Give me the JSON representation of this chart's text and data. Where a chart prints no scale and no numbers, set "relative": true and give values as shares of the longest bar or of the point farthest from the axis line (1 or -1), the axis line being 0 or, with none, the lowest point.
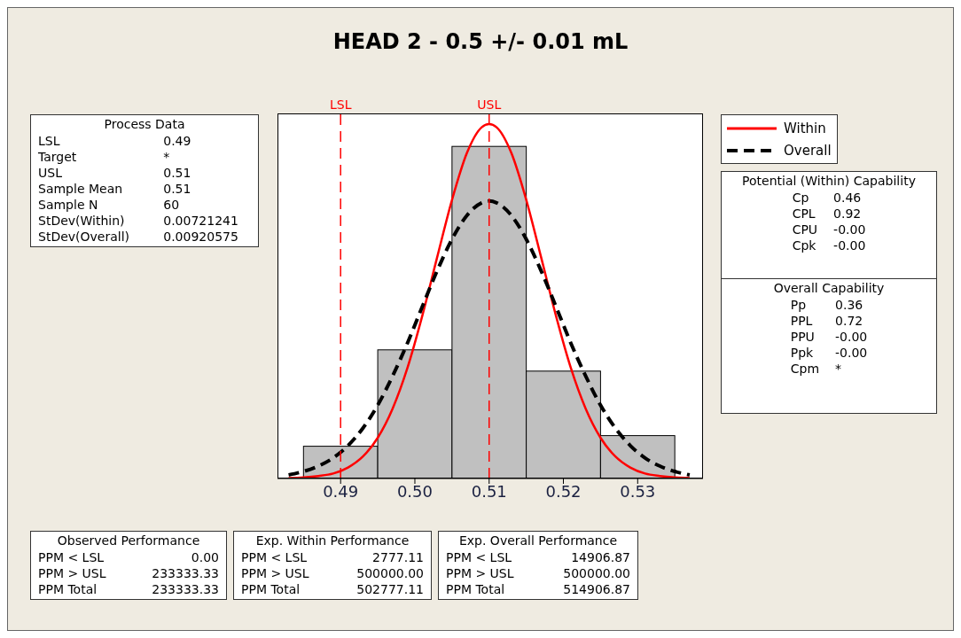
{
  "chart_data": {
    "type": "histogram",
    "title": "HEAD 2 - 0.5 +/- 0.01 mL",
    "relative": true,
    "bins": [
      0.485,
      0.495,
      0.505,
      0.515,
      0.525,
      0.535
    ],
    "values": [
      0.091,
      0.363,
      0.937,
      0.303,
      0.121
    ],
    "color": "#c0c0c0",
    "xlim": [
      0.4815,
      0.5388
    ],
    "xticks": [
      0.49,
      {
        "value": 0.5,
        "label": "0.50"
      },
      0.51,
      0.52,
      0.53
    ],
    "series": [
      {
        "name": "Within",
        "type": "line",
        "color": "#ff0000",
        "line_style": "solid",
        "x": [
          0.483,
          0.485,
          0.487,
          0.489,
          0.491,
          0.493,
          0.495,
          0.497,
          0.499,
          0.501,
          0.503,
          0.505,
          0.507,
          0.509,
          0.51,
          0.511,
          0.513,
          0.515,
          0.517,
          0.519,
          0.521,
          0.523,
          0.525,
          0.527,
          0.529,
          0.531,
          0.533,
          0.535,
          0.537
        ],
        "values": [
          0.001,
          0.003,
          0.007,
          0.014,
          0.031,
          0.062,
          0.115,
          0.197,
          0.312,
          0.459,
          0.624,
          0.786,
          0.918,
          0.991,
          1,
          0.991,
          0.918,
          0.786,
          0.624,
          0.459,
          0.312,
          0.197,
          0.115,
          0.062,
          0.031,
          0.014,
          0.007,
          0.003,
          0.001
        ]
      },
      {
        "name": "Overall",
        "type": "line",
        "color": "#000000",
        "line_style": "dashed",
        "x": [
          0.483,
          0.485,
          0.487,
          0.489,
          0.491,
          0.493,
          0.495,
          0.497,
          0.499,
          0.501,
          0.503,
          0.505,
          0.507,
          0.509,
          0.51,
          0.511,
          0.513,
          0.515,
          0.517,
          0.519,
          0.521,
          0.523,
          0.525,
          0.527,
          0.529,
          0.531,
          0.533,
          0.535,
          0.537
        ],
        "values": [
          0.01,
          0.02,
          0.035,
          0.058,
          0.093,
          0.142,
          0.207,
          0.289,
          0.382,
          0.485,
          0.586,
          0.675,
          0.742,
          0.778,
          0.783,
          0.778,
          0.742,
          0.675,
          0.586,
          0.485,
          0.382,
          0.289,
          0.207,
          0.142,
          0.093,
          0.058,
          0.035,
          0.02,
          0.01
        ]
      }
    ],
    "ref_lines": [
      {
        "axis": "x",
        "value": 0.49,
        "label": "LSL",
        "color": "#ff0000",
        "line_style": "dashed"
      },
      {
        "axis": "x",
        "value": 0.51,
        "label": "USL",
        "color": "#ff0000",
        "line_style": "dashed"
      }
    ],
    "legend": "top right",
    "grid": false,
    "annotations": [
      "Process Data\nLSL\t0.49\nTarget\t*\nUSL\t0.51\nSample Mean\t0.51\nSample N\t60\nStDev(Within)\t0.00721241\nStDev(Overall)\t0.00920575",
      "Potential (Within) Capability\nCp\t0.46\nCPL\t0.92\nCPU\t-0.00\nCpk\t-0.00",
      "Overall Capability\nPp\t0.36\nPPL\t0.72\nPPU\t-0.00\nPpk\t-0.00\nCpm\t*",
      "Observed Performance\nPPM < LSL\t0.00\nPPM > USL\t233333.33\nPPM Total\t233333.33",
      "Exp. Within Performance\nPPM < LSL\t2777.11\nPPM > USL\t500000.00\nPPM Total\t502777.11",
      "Exp. Overall Performance\nPPM < LSL\t14906.87\nPPM > USL\t500000.00\nPPM Total\t514906.87"
    ]
  }
}
